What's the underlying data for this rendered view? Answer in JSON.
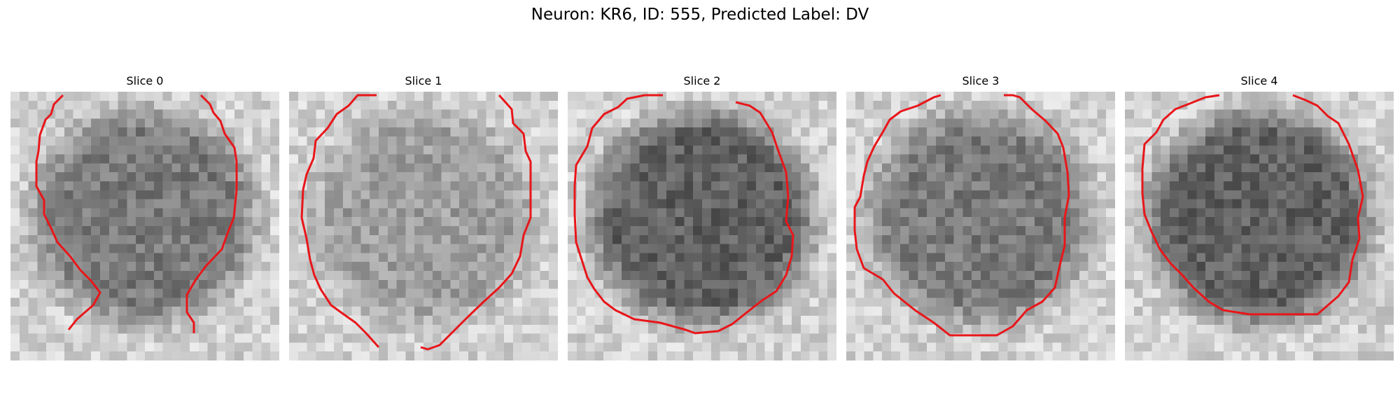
{
  "figure": {
    "title": "Neuron: KR6, ID: 555, Predicted Label: DV"
  },
  "contour_color": "#e8161a",
  "panels": [
    {
      "label": "Slice 0",
      "brightness": "medium",
      "center_darkness": "medium"
    },
    {
      "label": "Slice 1",
      "brightness": "medium-light",
      "center_darkness": "light"
    },
    {
      "label": "Slice 2",
      "brightness": "dark",
      "center_darkness": "dark"
    },
    {
      "label": "Slice 3",
      "brightness": "medium",
      "center_darkness": "medium"
    },
    {
      "label": "Slice 4",
      "brightness": "dark",
      "center_darkness": "dark"
    }
  ]
}
